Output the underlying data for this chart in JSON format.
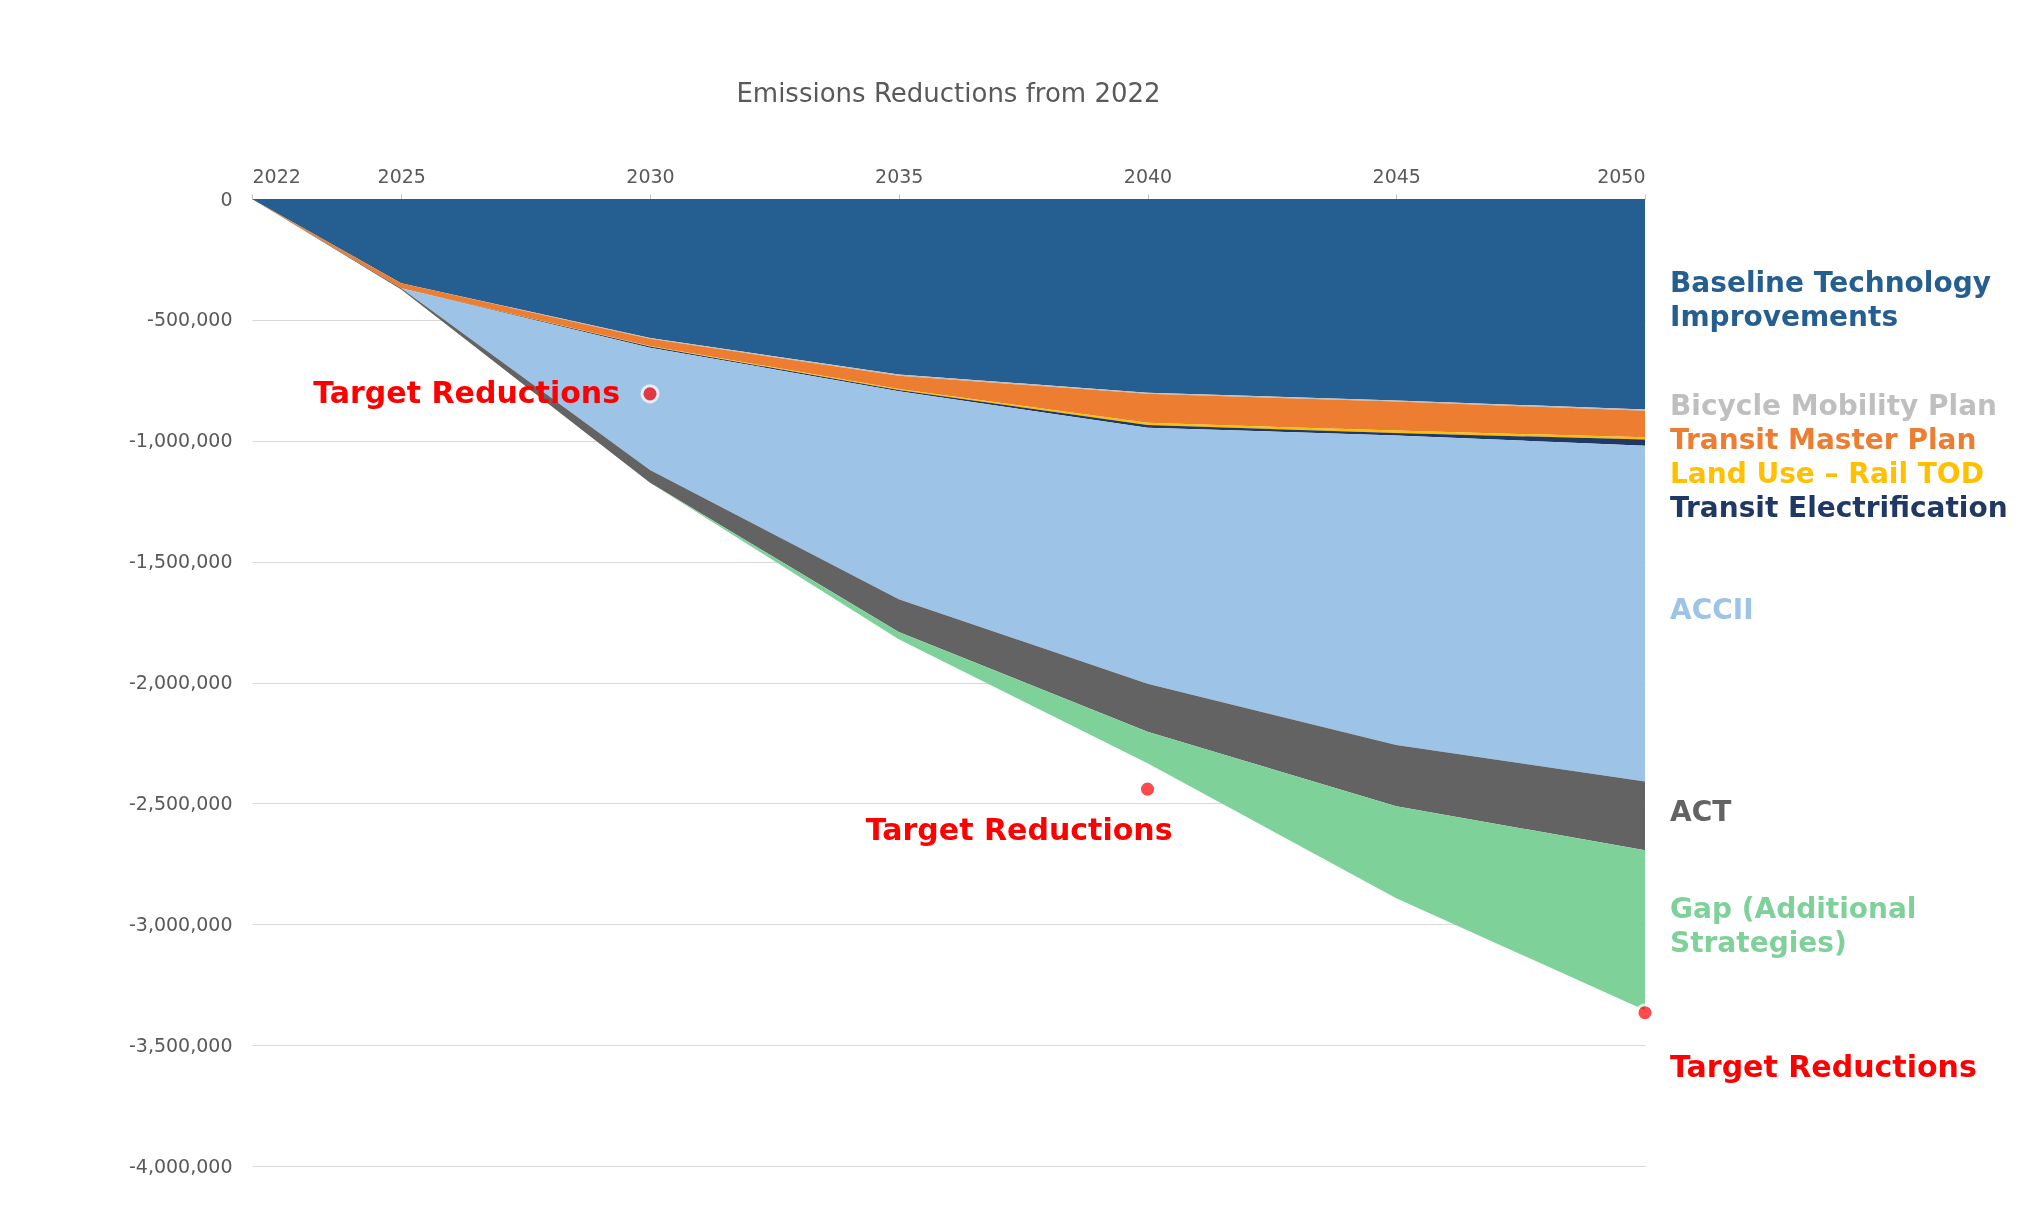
{
  "chart_data": {
    "type": "area",
    "title": "Emissions Reductions from 2022",
    "stacked": true,
    "x": [
      2022,
      2025,
      2030,
      2035,
      2040,
      2045,
      2050
    ],
    "series": [
      {
        "name": "Baseline Technology\nImprovements",
        "color": "#255e91",
        "values": [
          0,
          -349000,
          -575000,
          -726000,
          -801000,
          -833000,
          -871000
        ]
      },
      {
        "name": "Bicycle Mobility Plan",
        "color": "#bfbfbf",
        "values": [
          0,
          0,
          -3000,
          -5000,
          -5000,
          -5000,
          -5000
        ]
      },
      {
        "name": "Transit Master Plan",
        "color": "#ed7d31",
        "values": [
          0,
          -20000,
          -30000,
          -55000,
          -120000,
          -120000,
          -110000
        ]
      },
      {
        "name": "Land Use – Rail TOD",
        "color": "#ffc000",
        "values": [
          0,
          0,
          -2000,
          -4000,
          -9000,
          -10000,
          -9000
        ]
      },
      {
        "name": "Transit Electrification",
        "color": "#1f3864",
        "values": [
          0,
          0,
          -5000,
          -5000,
          -11000,
          -10000,
          -26000
        ]
      },
      {
        "name": "ACCII",
        "color": "#9dc3e6",
        "values": [
          0,
          0,
          -506000,
          -861000,
          -1059000,
          -1281000,
          -1388000
        ]
      },
      {
        "name": "ACT",
        "color": "#636363",
        "values": [
          0,
          -5000,
          -53000,
          -135000,
          -199000,
          -253000,
          -285000
        ]
      },
      {
        "name": "Gap (Additional\nStrategies)",
        "color": "#7fd19a",
        "values": [
          0,
          0,
          0,
          -30000,
          -130000,
          -380000,
          -662000
        ]
      }
    ],
    "annotations": [
      {
        "text": "Target Reductions",
        "x": 2030,
        "y": -806000
      },
      {
        "text": "Target Reductions",
        "x": 2040,
        "y": -2441000
      },
      {
        "text": "Target Reductions",
        "x": 2050,
        "y": -3366000
      }
    ],
    "xlim": [
      2022,
      2050
    ],
    "xticks": [
      2022,
      2025,
      2030,
      2035,
      2040,
      2045,
      2050
    ],
    "ylim": [
      -4000000,
      0
    ],
    "yticks": [
      {
        "value": 0,
        "label": "0"
      },
      {
        "value": -500000,
        "label": "-500,000"
      },
      {
        "value": -1000000,
        "label": "-1,000,000"
      },
      {
        "value": -1500000,
        "label": "-1,500,000"
      },
      {
        "value": -2000000,
        "label": "-2,000,000"
      },
      {
        "value": -2500000,
        "label": "-2,500,000"
      },
      {
        "value": -3000000,
        "label": "-3,000,000"
      },
      {
        "value": -3500000,
        "label": "-3,500,000"
      },
      {
        "value": -4000000,
        "label": "-4,000,000"
      }
    ],
    "grid": "y",
    "legend": false
  }
}
